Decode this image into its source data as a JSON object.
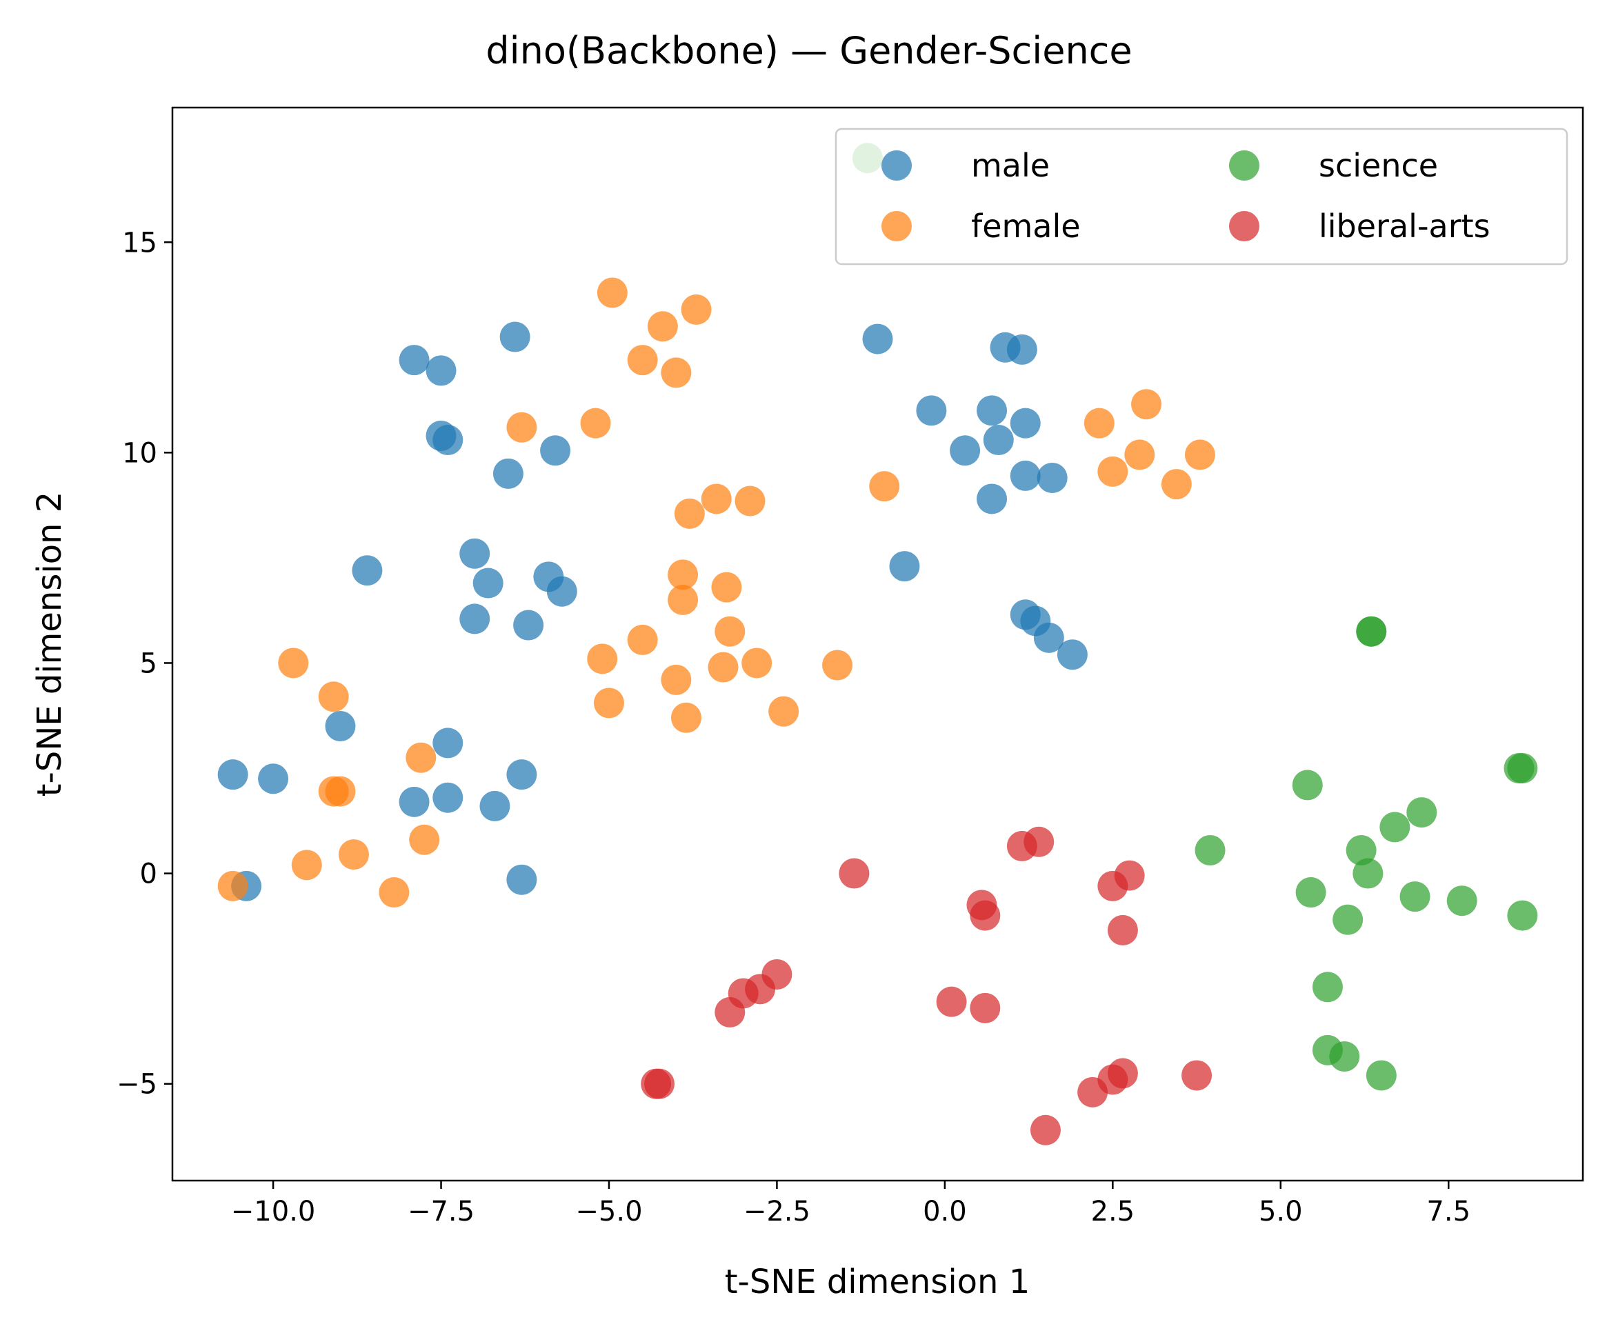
{
  "chart_data": {
    "type": "scatter",
    "title": "dino(Backbone) — Gender-Science",
    "xlabel": "t-SNE dimension 1",
    "ylabel": "t-SNE dimension 2",
    "xlim": [
      -11.5,
      9.5
    ],
    "ylim": [
      -7.3,
      18.2
    ],
    "xticks": [
      {
        "value": -10.0,
        "label": "−10.0"
      },
      {
        "value": -7.5,
        "label": "−7.5"
      },
      {
        "value": -5.0,
        "label": "−5.0"
      },
      {
        "value": -2.5,
        "label": "−2.5"
      },
      {
        "value": 0.0,
        "label": "0.0"
      },
      {
        "value": 2.5,
        "label": "2.5"
      },
      {
        "value": 5.0,
        "label": "5.0"
      },
      {
        "value": 7.5,
        "label": "7.5"
      }
    ],
    "yticks": [
      {
        "value": -5,
        "label": "−5"
      },
      {
        "value": 0,
        "label": "0"
      },
      {
        "value": 5,
        "label": "5"
      },
      {
        "value": 10,
        "label": "10"
      },
      {
        "value": 15,
        "label": "15"
      }
    ],
    "grid": false,
    "legend": {
      "position": "top-right",
      "columns": 2
    },
    "series": [
      {
        "name": "male",
        "color": "#1f77b4",
        "points": [
          [
            -10.6,
            2.35
          ],
          [
            -10.0,
            2.25
          ],
          [
            -10.4,
            -0.3
          ],
          [
            -9.0,
            3.5
          ],
          [
            -8.6,
            7.2
          ],
          [
            -7.9,
            12.2
          ],
          [
            -7.9,
            1.7
          ],
          [
            -7.5,
            11.95
          ],
          [
            -7.5,
            10.4
          ],
          [
            -7.4,
            10.3
          ],
          [
            -7.4,
            3.1
          ],
          [
            -7.4,
            1.8
          ],
          [
            -7.0,
            7.6
          ],
          [
            -6.8,
            6.9
          ],
          [
            -7.0,
            6.05
          ],
          [
            -6.5,
            9.5
          ],
          [
            -6.4,
            12.75
          ],
          [
            -6.7,
            1.6
          ],
          [
            -6.3,
            2.35
          ],
          [
            -6.3,
            -0.15
          ],
          [
            -6.2,
            5.9
          ],
          [
            -5.8,
            10.05
          ],
          [
            -5.9,
            7.05
          ],
          [
            -5.7,
            6.7
          ],
          [
            -1.0,
            12.7
          ],
          [
            -0.6,
            7.3
          ],
          [
            -0.2,
            11.0
          ],
          [
            0.3,
            10.05
          ],
          [
            0.7,
            11.0
          ],
          [
            0.7,
            8.9
          ],
          [
            0.8,
            10.3
          ],
          [
            0.9,
            12.5
          ],
          [
            1.15,
            12.45
          ],
          [
            1.2,
            10.7
          ],
          [
            1.2,
            9.45
          ],
          [
            1.6,
            9.4
          ],
          [
            1.2,
            6.15
          ],
          [
            1.35,
            6.0
          ],
          [
            1.55,
            5.6
          ],
          [
            1.9,
            5.2
          ]
        ]
      },
      {
        "name": "female",
        "color": "#ff7f0e",
        "points": [
          [
            -10.6,
            -0.3
          ],
          [
            -9.7,
            5.0
          ],
          [
            -9.5,
            0.2
          ],
          [
            -9.1,
            4.2
          ],
          [
            -9.1,
            1.95
          ],
          [
            -9.0,
            1.95
          ],
          [
            -8.8,
            0.45
          ],
          [
            -8.2,
            -0.45
          ],
          [
            -7.8,
            2.75
          ],
          [
            -7.75,
            0.8
          ],
          [
            -6.3,
            10.6
          ],
          [
            -5.2,
            10.7
          ],
          [
            -5.1,
            5.1
          ],
          [
            -5.0,
            4.05
          ],
          [
            -4.95,
            13.8
          ],
          [
            -4.5,
            5.55
          ],
          [
            -4.5,
            12.2
          ],
          [
            -4.2,
            13.0
          ],
          [
            -4.0,
            4.6
          ],
          [
            -4.0,
            11.9
          ],
          [
            -3.9,
            7.1
          ],
          [
            -3.9,
            6.5
          ],
          [
            -3.85,
            3.7
          ],
          [
            -3.8,
            8.55
          ],
          [
            -3.7,
            13.4
          ],
          [
            -3.4,
            8.9
          ],
          [
            -3.3,
            4.9
          ],
          [
            -3.25,
            6.8
          ],
          [
            -3.2,
            5.75
          ],
          [
            -2.9,
            8.85
          ],
          [
            -2.8,
            5.0
          ],
          [
            -2.4,
            3.85
          ],
          [
            -1.6,
            4.95
          ],
          [
            -0.9,
            9.2
          ],
          [
            2.3,
            10.7
          ],
          [
            2.5,
            9.55
          ],
          [
            2.9,
            9.95
          ],
          [
            3.0,
            11.15
          ],
          [
            3.45,
            9.25
          ],
          [
            3.8,
            9.95
          ]
        ]
      },
      {
        "name": "science",
        "color": "#2ca02c",
        "points": [
          [
            -1.15,
            17.0
          ],
          [
            3.95,
            0.55
          ],
          [
            5.4,
            2.1
          ],
          [
            5.45,
            -0.45
          ],
          [
            5.7,
            -2.7
          ],
          [
            5.7,
            -4.2
          ],
          [
            5.95,
            -4.35
          ],
          [
            6.0,
            -1.1
          ],
          [
            6.2,
            0.55
          ],
          [
            6.3,
            0.0
          ],
          [
            6.35,
            5.75
          ],
          [
            6.35,
            5.75
          ],
          [
            6.5,
            -4.8
          ],
          [
            6.7,
            1.1
          ],
          [
            7.0,
            -0.55
          ],
          [
            7.1,
            1.45
          ],
          [
            7.7,
            -0.65
          ],
          [
            8.55,
            2.5
          ],
          [
            8.6,
            2.5
          ],
          [
            8.6,
            -1.0
          ]
        ]
      },
      {
        "name": "liberal-arts",
        "color": "#d62728",
        "points": [
          [
            -4.3,
            -5.0
          ],
          [
            -4.25,
            -5.0
          ],
          [
            -3.2,
            -3.3
          ],
          [
            -3.0,
            -2.85
          ],
          [
            -2.75,
            -2.75
          ],
          [
            -2.5,
            -2.4
          ],
          [
            -1.35,
            0.0
          ],
          [
            0.1,
            -3.05
          ],
          [
            0.55,
            -0.75
          ],
          [
            0.6,
            -1.0
          ],
          [
            0.6,
            -3.2
          ],
          [
            1.15,
            0.65
          ],
          [
            1.4,
            0.75
          ],
          [
            1.5,
            -6.1
          ],
          [
            2.2,
            -5.2
          ],
          [
            2.5,
            -4.9
          ],
          [
            2.5,
            -0.3
          ],
          [
            2.65,
            -4.75
          ],
          [
            2.65,
            -1.35
          ],
          [
            2.75,
            -0.05
          ],
          [
            3.75,
            -4.8
          ]
        ]
      }
    ]
  }
}
